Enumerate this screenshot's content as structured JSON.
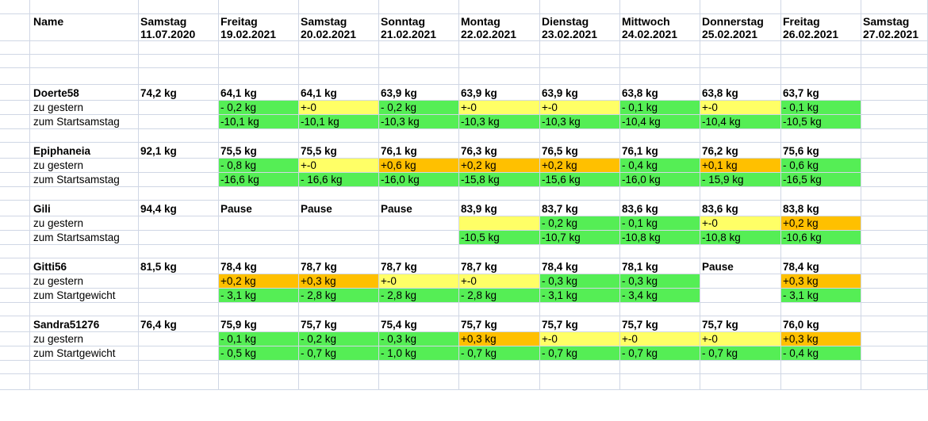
{
  "headers": {
    "name_label": "Name",
    "days": [
      {
        "day": "Samstag",
        "date": "11.07.2020"
      },
      {
        "day": "Freitag",
        "date": "19.02.2021"
      },
      {
        "day": "Samstag",
        "date": "20.02.2021"
      },
      {
        "day": "Sonntag",
        "date": "21.02.2021"
      },
      {
        "day": "Montag",
        "date": "22.02.2021"
      },
      {
        "day": "Dienstag",
        "date": "23.02.2021"
      },
      {
        "day": "Mittwoch",
        "date": "24.02.2021"
      },
      {
        "day": "Donnerstag",
        "date": "25.02.2021"
      },
      {
        "day": "Freitag",
        "date": "26.02.2021"
      },
      {
        "day": "Samstag",
        "date": "27.02.2021"
      }
    ]
  },
  "people": [
    {
      "name": "Doerte58",
      "spellcheck": false,
      "weights": [
        "74,2 kg",
        "64,1 kg",
        "64,1 kg",
        "63,9 kg",
        "63,9 kg",
        "63,9 kg",
        "63,8 kg",
        "63,8 kg",
        "63,7 kg",
        ""
      ],
      "rows": [
        {
          "label": "zu gestern",
          "cells": [
            {
              "v": "",
              "c": ""
            },
            {
              "v": "- 0,2 kg",
              "c": "green"
            },
            {
              "v": "+-0",
              "c": "yellow"
            },
            {
              "v": "- 0,2 kg",
              "c": "green"
            },
            {
              "v": "+-0",
              "c": "yellow"
            },
            {
              "v": "+-0",
              "c": "yellow"
            },
            {
              "v": "- 0,1 kg",
              "c": "green"
            },
            {
              "v": "+-0",
              "c": "yellow"
            },
            {
              "v": "- 0,1 kg",
              "c": "green"
            },
            {
              "v": "",
              "c": ""
            }
          ]
        },
        {
          "label": "zum Startsamstag",
          "cells": [
            {
              "v": "",
              "c": ""
            },
            {
              "v": "-10,1 kg",
              "c": "green"
            },
            {
              "v": "-10,1 kg",
              "c": "green"
            },
            {
              "v": "-10,3 kg",
              "c": "green"
            },
            {
              "v": "-10,3 kg",
              "c": "green"
            },
            {
              "v": "-10,3 kg",
              "c": "green"
            },
            {
              "v": "-10,4 kg",
              "c": "green"
            },
            {
              "v": "-10,4 kg",
              "c": "green"
            },
            {
              "v": "-10,5 kg",
              "c": "green"
            },
            {
              "v": "",
              "c": ""
            }
          ]
        }
      ]
    },
    {
      "name": "Epiphaneia",
      "spellcheck": true,
      "weights": [
        "92,1 kg",
        "75,5 kg",
        "75,5 kg",
        "76,1 kg",
        "76,3 kg",
        "76,5 kg",
        "76,1 kg",
        "76,2 kg",
        "75,6 kg",
        ""
      ],
      "rows": [
        {
          "label": "zu gestern",
          "cells": [
            {
              "v": "",
              "c": ""
            },
            {
              "v": "- 0,8 kg",
              "c": "green"
            },
            {
              "v": "+-0",
              "c": "yellow"
            },
            {
              "v": "+0,6 kg",
              "c": "orange"
            },
            {
              "v": "+0,2 kg",
              "c": "orange"
            },
            {
              "v": "+0,2 kg",
              "c": "orange"
            },
            {
              "v": "- 0,4 kg",
              "c": "green"
            },
            {
              "v": "+0,1 kg",
              "c": "orange"
            },
            {
              "v": "- 0,6 kg",
              "c": "green"
            },
            {
              "v": "",
              "c": ""
            }
          ]
        },
        {
          "label": "zum Startsamstag",
          "cells": [
            {
              "v": "",
              "c": ""
            },
            {
              "v": "-16,6 kg",
              "c": "green"
            },
            {
              "v": "- 16,6 kg",
              "c": "green"
            },
            {
              "v": "-16,0 kg",
              "c": "green"
            },
            {
              "v": "-15,8 kg",
              "c": "green"
            },
            {
              "v": "-15,6 kg",
              "c": "green"
            },
            {
              "v": "-16,0 kg",
              "c": "green"
            },
            {
              "v": "- 15,9 kg",
              "c": "green"
            },
            {
              "v": "-16,5 kg",
              "c": "green"
            },
            {
              "v": "",
              "c": ""
            }
          ]
        }
      ]
    },
    {
      "name": "Gili",
      "spellcheck": true,
      "weights": [
        "94,4 kg",
        "Pause",
        "Pause",
        "Pause",
        "83,9 kg",
        "83,7 kg",
        "83,6 kg",
        "83,6 kg",
        "83,8 kg",
        ""
      ],
      "rows": [
        {
          "label": "zu gestern",
          "cells": [
            {
              "v": "",
              "c": ""
            },
            {
              "v": "",
              "c": ""
            },
            {
              "v": "",
              "c": ""
            },
            {
              "v": "",
              "c": ""
            },
            {
              "v": "",
              "c": "yellow"
            },
            {
              "v": "- 0,2 kg",
              "c": "green"
            },
            {
              "v": "- 0,1 kg",
              "c": "green"
            },
            {
              "v": "+-0",
              "c": "yellow"
            },
            {
              "v": "+0,2 kg",
              "c": "orange"
            },
            {
              "v": "",
              "c": ""
            }
          ]
        },
        {
          "label": "zum Startsamstag",
          "cells": [
            {
              "v": "",
              "c": ""
            },
            {
              "v": "",
              "c": ""
            },
            {
              "v": "",
              "c": ""
            },
            {
              "v": "",
              "c": ""
            },
            {
              "v": "-10,5 kg",
              "c": "green"
            },
            {
              "v": "-10,7 kg",
              "c": "green"
            },
            {
              "v": "-10,8 kg",
              "c": "green"
            },
            {
              "v": "-10,8 kg",
              "c": "green"
            },
            {
              "v": "-10,6 kg",
              "c": "green"
            },
            {
              "v": "",
              "c": ""
            }
          ]
        }
      ]
    },
    {
      "name": "Gitti56",
      "spellcheck": false,
      "weights": [
        "81,5 kg",
        "78,4 kg",
        "78,7 kg",
        "78,7 kg",
        "78,7 kg",
        "78,4 kg",
        "78,1 kg",
        "Pause",
        "78,4 kg",
        ""
      ],
      "rows": [
        {
          "label": "zu gestern",
          "cells": [
            {
              "v": "",
              "c": ""
            },
            {
              "v": "+0,2 kg",
              "c": "orange"
            },
            {
              "v": "+0,3 kg",
              "c": "orange"
            },
            {
              "v": "+-0",
              "c": "yellow"
            },
            {
              "v": "+-0",
              "c": "yellow"
            },
            {
              "v": "- 0,3 kg",
              "c": "green"
            },
            {
              "v": "- 0,3 kg",
              "c": "green"
            },
            {
              "v": "",
              "c": ""
            },
            {
              "v": "+0,3 kg",
              "c": "orange"
            },
            {
              "v": "",
              "c": ""
            }
          ]
        },
        {
          "label": "zum Startgewicht",
          "cells": [
            {
              "v": "",
              "c": ""
            },
            {
              "v": "- 3,1 kg",
              "c": "green"
            },
            {
              "v": "- 2,8 kg",
              "c": "green"
            },
            {
              "v": "- 2,8 kg",
              "c": "green"
            },
            {
              "v": "- 2,8 kg",
              "c": "green"
            },
            {
              "v": "- 3,1 kg",
              "c": "green"
            },
            {
              "v": "- 3,4 kg",
              "c": "green"
            },
            {
              "v": "",
              "c": ""
            },
            {
              "v": "- 3,1 kg",
              "c": "green"
            },
            {
              "v": "",
              "c": ""
            }
          ]
        }
      ]
    },
    {
      "name": "Sandra51276",
      "spellcheck": false,
      "weights": [
        "76,4 kg",
        "75,9 kg",
        "75,7 kg",
        "75,4 kg",
        "75,7 kg",
        "75,7 kg",
        "75,7 kg",
        "75,7 kg",
        "76,0 kg",
        ""
      ],
      "rows": [
        {
          "label": "zu gestern",
          "cells": [
            {
              "v": "",
              "c": ""
            },
            {
              "v": "- 0,1 kg",
              "c": "green"
            },
            {
              "v": "- 0,2 kg",
              "c": "green"
            },
            {
              "v": "- 0,3 kg",
              "c": "green"
            },
            {
              "v": "+0,3 kg",
              "c": "orange"
            },
            {
              "v": "+-0",
              "c": "yellow"
            },
            {
              "v": "+-0",
              "c": "yellow"
            },
            {
              "v": "+-0",
              "c": "yellow"
            },
            {
              "v": "+0,3 kg",
              "c": "orange"
            },
            {
              "v": "",
              "c": ""
            }
          ]
        },
        {
          "label": "zum Startgewicht",
          "cells": [
            {
              "v": "",
              "c": ""
            },
            {
              "v": "- 0,5 kg",
              "c": "green"
            },
            {
              "v": "- 0,7 kg",
              "c": "green"
            },
            {
              "v": "- 1,0 kg",
              "c": "green"
            },
            {
              "v": "- 0,7 kg",
              "c": "green"
            },
            {
              "v": "- 0,7 kg",
              "c": "green"
            },
            {
              "v": "- 0,7 kg",
              "c": "green"
            },
            {
              "v": "- 0,7 kg",
              "c": "green"
            },
            {
              "v": "- 0,4 kg",
              "c": "green"
            },
            {
              "v": "",
              "c": ""
            }
          ]
        }
      ]
    }
  ],
  "colors": {
    "green": "#55ee55",
    "yellow": "#ffff66",
    "orange": "#ffc000",
    "grid": "#d0d7e5"
  }
}
